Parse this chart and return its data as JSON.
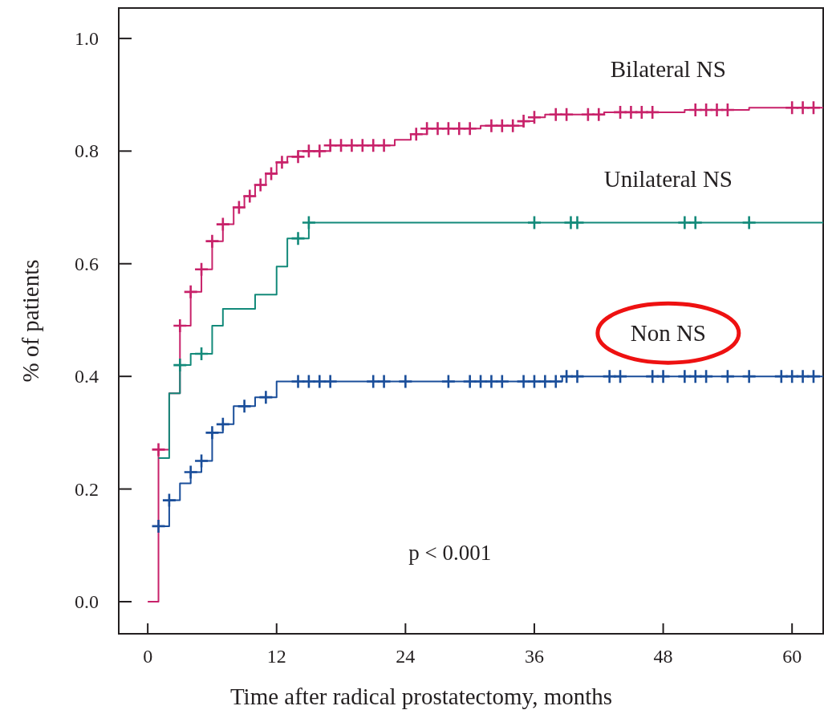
{
  "chart_data": {
    "type": "step",
    "xlabel": "Time after radical prostatectomy, months",
    "ylabel": "% of patients",
    "xlim": [
      -2.7,
      62.9
    ],
    "ylim": [
      -0.057,
      1.054
    ],
    "xticks": [
      0,
      12,
      24,
      36,
      48,
      60
    ],
    "yticks": [
      {
        "value": 0,
        "label": "0.0"
      },
      {
        "value": 0.2,
        "label": "0.2"
      },
      {
        "value": 0.4,
        "label": "0.4"
      },
      {
        "value": 0.6,
        "label": "0.6"
      },
      {
        "value": 0.8,
        "label": "0.8"
      },
      {
        "value": 1,
        "label": "1.0"
      }
    ],
    "grid": false,
    "annotations": [
      "p < 0.001"
    ],
    "series": [
      {
        "name": "Bilateral NS",
        "color": "#c8226a",
        "marker": "none",
        "x": [
          0,
          1,
          2,
          3,
          4,
          5,
          6,
          7,
          8,
          9,
          10,
          11,
          12,
          13,
          14,
          16,
          17,
          23,
          24.5,
          26,
          31,
          35,
          36,
          37,
          42.5,
          50,
          56,
          62.9
        ],
        "values": [
          0,
          0.27,
          0.37,
          0.49,
          0.55,
          0.59,
          0.64,
          0.67,
          0.7,
          0.72,
          0.74,
          0.76,
          0.78,
          0.79,
          0.8,
          0.8,
          0.81,
          0.82,
          0.83,
          0.84,
          0.845,
          0.853,
          0.86,
          0.865,
          0.869,
          0.873,
          0.877,
          0.877
        ]
      },
      {
        "name": "Unilateral NS",
        "color": "#138a7a",
        "marker": "none",
        "x": [
          1,
          2,
          3,
          4,
          6,
          7,
          10,
          12,
          13,
          15,
          62.9
        ],
        "values": [
          0.255,
          0.37,
          0.42,
          0.44,
          0.49,
          0.52,
          0.545,
          0.595,
          0.645,
          0.673,
          0.673
        ]
      },
      {
        "name": "Non NS",
        "color": "#1a4e9a",
        "marker": "none",
        "x": [
          1,
          2,
          3,
          4,
          5,
          6,
          7,
          8,
          10,
          12,
          38.6,
          62.9
        ],
        "values": [
          0.134,
          0.18,
          0.21,
          0.23,
          0.25,
          0.3,
          0.315,
          0.347,
          0.363,
          0.391,
          0.4,
          0.4
        ]
      },
      {
        "type": "scatter",
        "color": "#c8226a",
        "marker": "cross",
        "x": [
          1,
          3,
          4,
          5,
          6,
          7,
          8.5,
          9.5,
          10.5,
          11.5,
          12.5,
          14,
          15,
          16,
          17,
          18,
          19,
          20,
          21,
          22,
          25,
          26,
          27,
          28,
          29,
          30,
          32,
          33,
          34,
          35,
          36,
          38,
          39,
          41,
          42,
          44,
          45,
          46,
          47,
          51,
          52,
          53,
          54,
          60,
          61,
          62
        ],
        "values": [
          0.27,
          0.49,
          0.55,
          0.59,
          0.64,
          0.67,
          0.7,
          0.72,
          0.74,
          0.76,
          0.78,
          0.79,
          0.8,
          0.8,
          0.81,
          0.81,
          0.81,
          0.81,
          0.81,
          0.81,
          0.83,
          0.84,
          0.84,
          0.84,
          0.84,
          0.84,
          0.845,
          0.845,
          0.845,
          0.853,
          0.86,
          0.865,
          0.865,
          0.865,
          0.865,
          0.869,
          0.869,
          0.869,
          0.869,
          0.873,
          0.873,
          0.873,
          0.873,
          0.877,
          0.877,
          0.877
        ]
      },
      {
        "type": "scatter",
        "color": "#138a7a",
        "marker": "cross",
        "x": [
          3,
          5,
          14,
          15,
          36,
          39.4,
          40,
          50,
          51,
          56
        ],
        "values": [
          0.42,
          0.44,
          0.645,
          0.673,
          0.673,
          0.673,
          0.673,
          0.673,
          0.673,
          0.673
        ]
      },
      {
        "type": "scatter",
        "color": "#1a4e9a",
        "marker": "cross",
        "x": [
          1,
          2,
          4,
          5,
          6,
          7,
          9,
          11,
          14,
          15,
          16,
          17,
          21,
          22,
          24,
          28,
          30,
          31,
          32,
          33,
          35,
          36,
          37,
          38,
          39,
          40,
          43,
          44,
          47,
          48,
          50,
          51,
          52,
          54,
          56,
          59,
          60,
          61,
          62
        ],
        "values": [
          0.134,
          0.18,
          0.23,
          0.25,
          0.3,
          0.315,
          0.347,
          0.363,
          0.391,
          0.391,
          0.391,
          0.391,
          0.391,
          0.391,
          0.391,
          0.391,
          0.391,
          0.391,
          0.391,
          0.391,
          0.391,
          0.391,
          0.391,
          0.391,
          0.4,
          0.4,
          0.4,
          0.4,
          0.4,
          0.4,
          0.4,
          0.4,
          0.4,
          0.4,
          0.4,
          0.4,
          0.4,
          0.4,
          0.4
        ]
      }
    ]
  }
}
